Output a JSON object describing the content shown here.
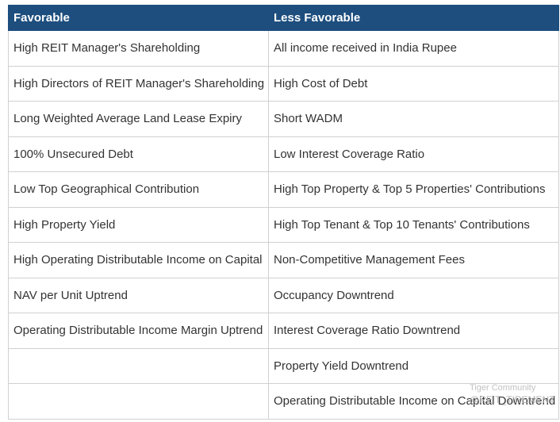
{
  "table": {
    "headers": [
      "Favorable",
      "Less Favorable"
    ],
    "favorable": [
      "High REIT Manager's Shareholding",
      "High Directors of REIT Manager's Shareholding",
      "Long Weighted Average Land Lease Expiry",
      "100% Unsecured Debt",
      "Low Top Geographical Contribution",
      "High Property Yield",
      "High Operating Distributable Income on Capital",
      "NAV per Unit Uptrend",
      "Operating Distributable Income Margin Uptrend"
    ],
    "less_favorable": [
      "All income received in India Rupee",
      "High Cost of Debt",
      "Short WADM",
      "Low Interest Coverage Ratio",
      "High Top Property & Top 5 Properties' Contributions",
      "High Top Tenant & Top 10 Tenants' Contributions",
      "Non-Competitive Management Fees",
      "Occupancy Downtrend",
      "Interest Coverage Ratio Downtrend",
      "Property Yield Downtrend",
      "Operating Distributable Income on Capital Downtrend"
    ]
  },
  "watermark": {
    "line1": "Tiger Community",
    "line2": "@REIT_TIREMENT"
  }
}
